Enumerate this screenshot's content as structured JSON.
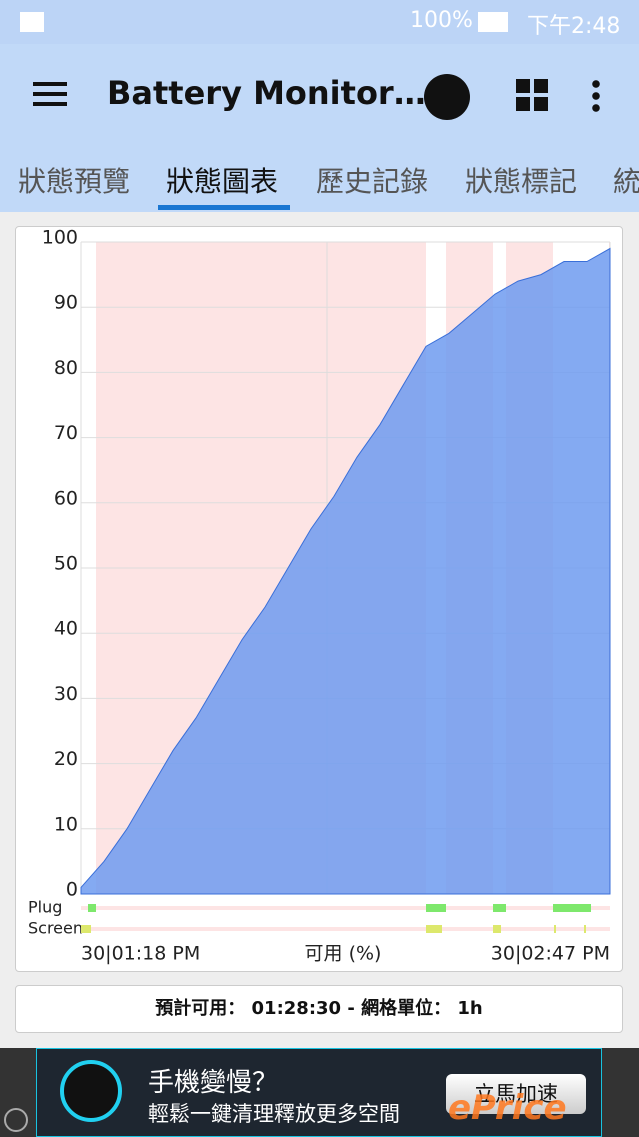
{
  "status_bar": {
    "battery": "100%",
    "time": "下午2:48"
  },
  "app_bar": {
    "title": "Battery Monitor…"
  },
  "tabs": [
    "狀態預覽",
    "狀態圖表",
    "歷史記錄",
    "狀態標記",
    "統"
  ],
  "chart_data": {
    "type": "area",
    "color": "#6f9bf0",
    "xlabel": "可用 (%)",
    "categories": [
      "30|01:18 PM",
      null,
      null,
      null,
      null,
      null,
      null,
      null,
      null,
      null,
      null,
      null,
      null,
      null,
      null,
      null,
      null,
      null,
      null,
      null,
      null,
      null,
      null,
      "30|02:47 PM"
    ],
    "values": [
      1,
      5,
      10,
      16,
      22,
      27,
      33,
      39,
      44,
      50,
      56,
      61,
      67,
      72,
      78,
      84,
      86,
      89,
      92,
      94,
      95,
      97,
      97,
      99
    ],
    "ylim": [
      0,
      100
    ],
    "yticks": [
      0,
      10,
      20,
      30,
      40,
      50,
      60,
      70,
      80,
      90,
      100
    ],
    "grid": true,
    "status_rows": [
      "Plug",
      "Screen"
    ]
  },
  "footer": {
    "estimate_label": "預計可用：",
    "estimate": "01:28:30",
    "grid_label": "- 網格單位：",
    "grid_unit": "1h"
  },
  "ad": {
    "headline": "手機變慢？",
    "text": "輕鬆一鍵清理釋放更多空間",
    "button": "立馬加速",
    "watermark": "ePrice"
  }
}
